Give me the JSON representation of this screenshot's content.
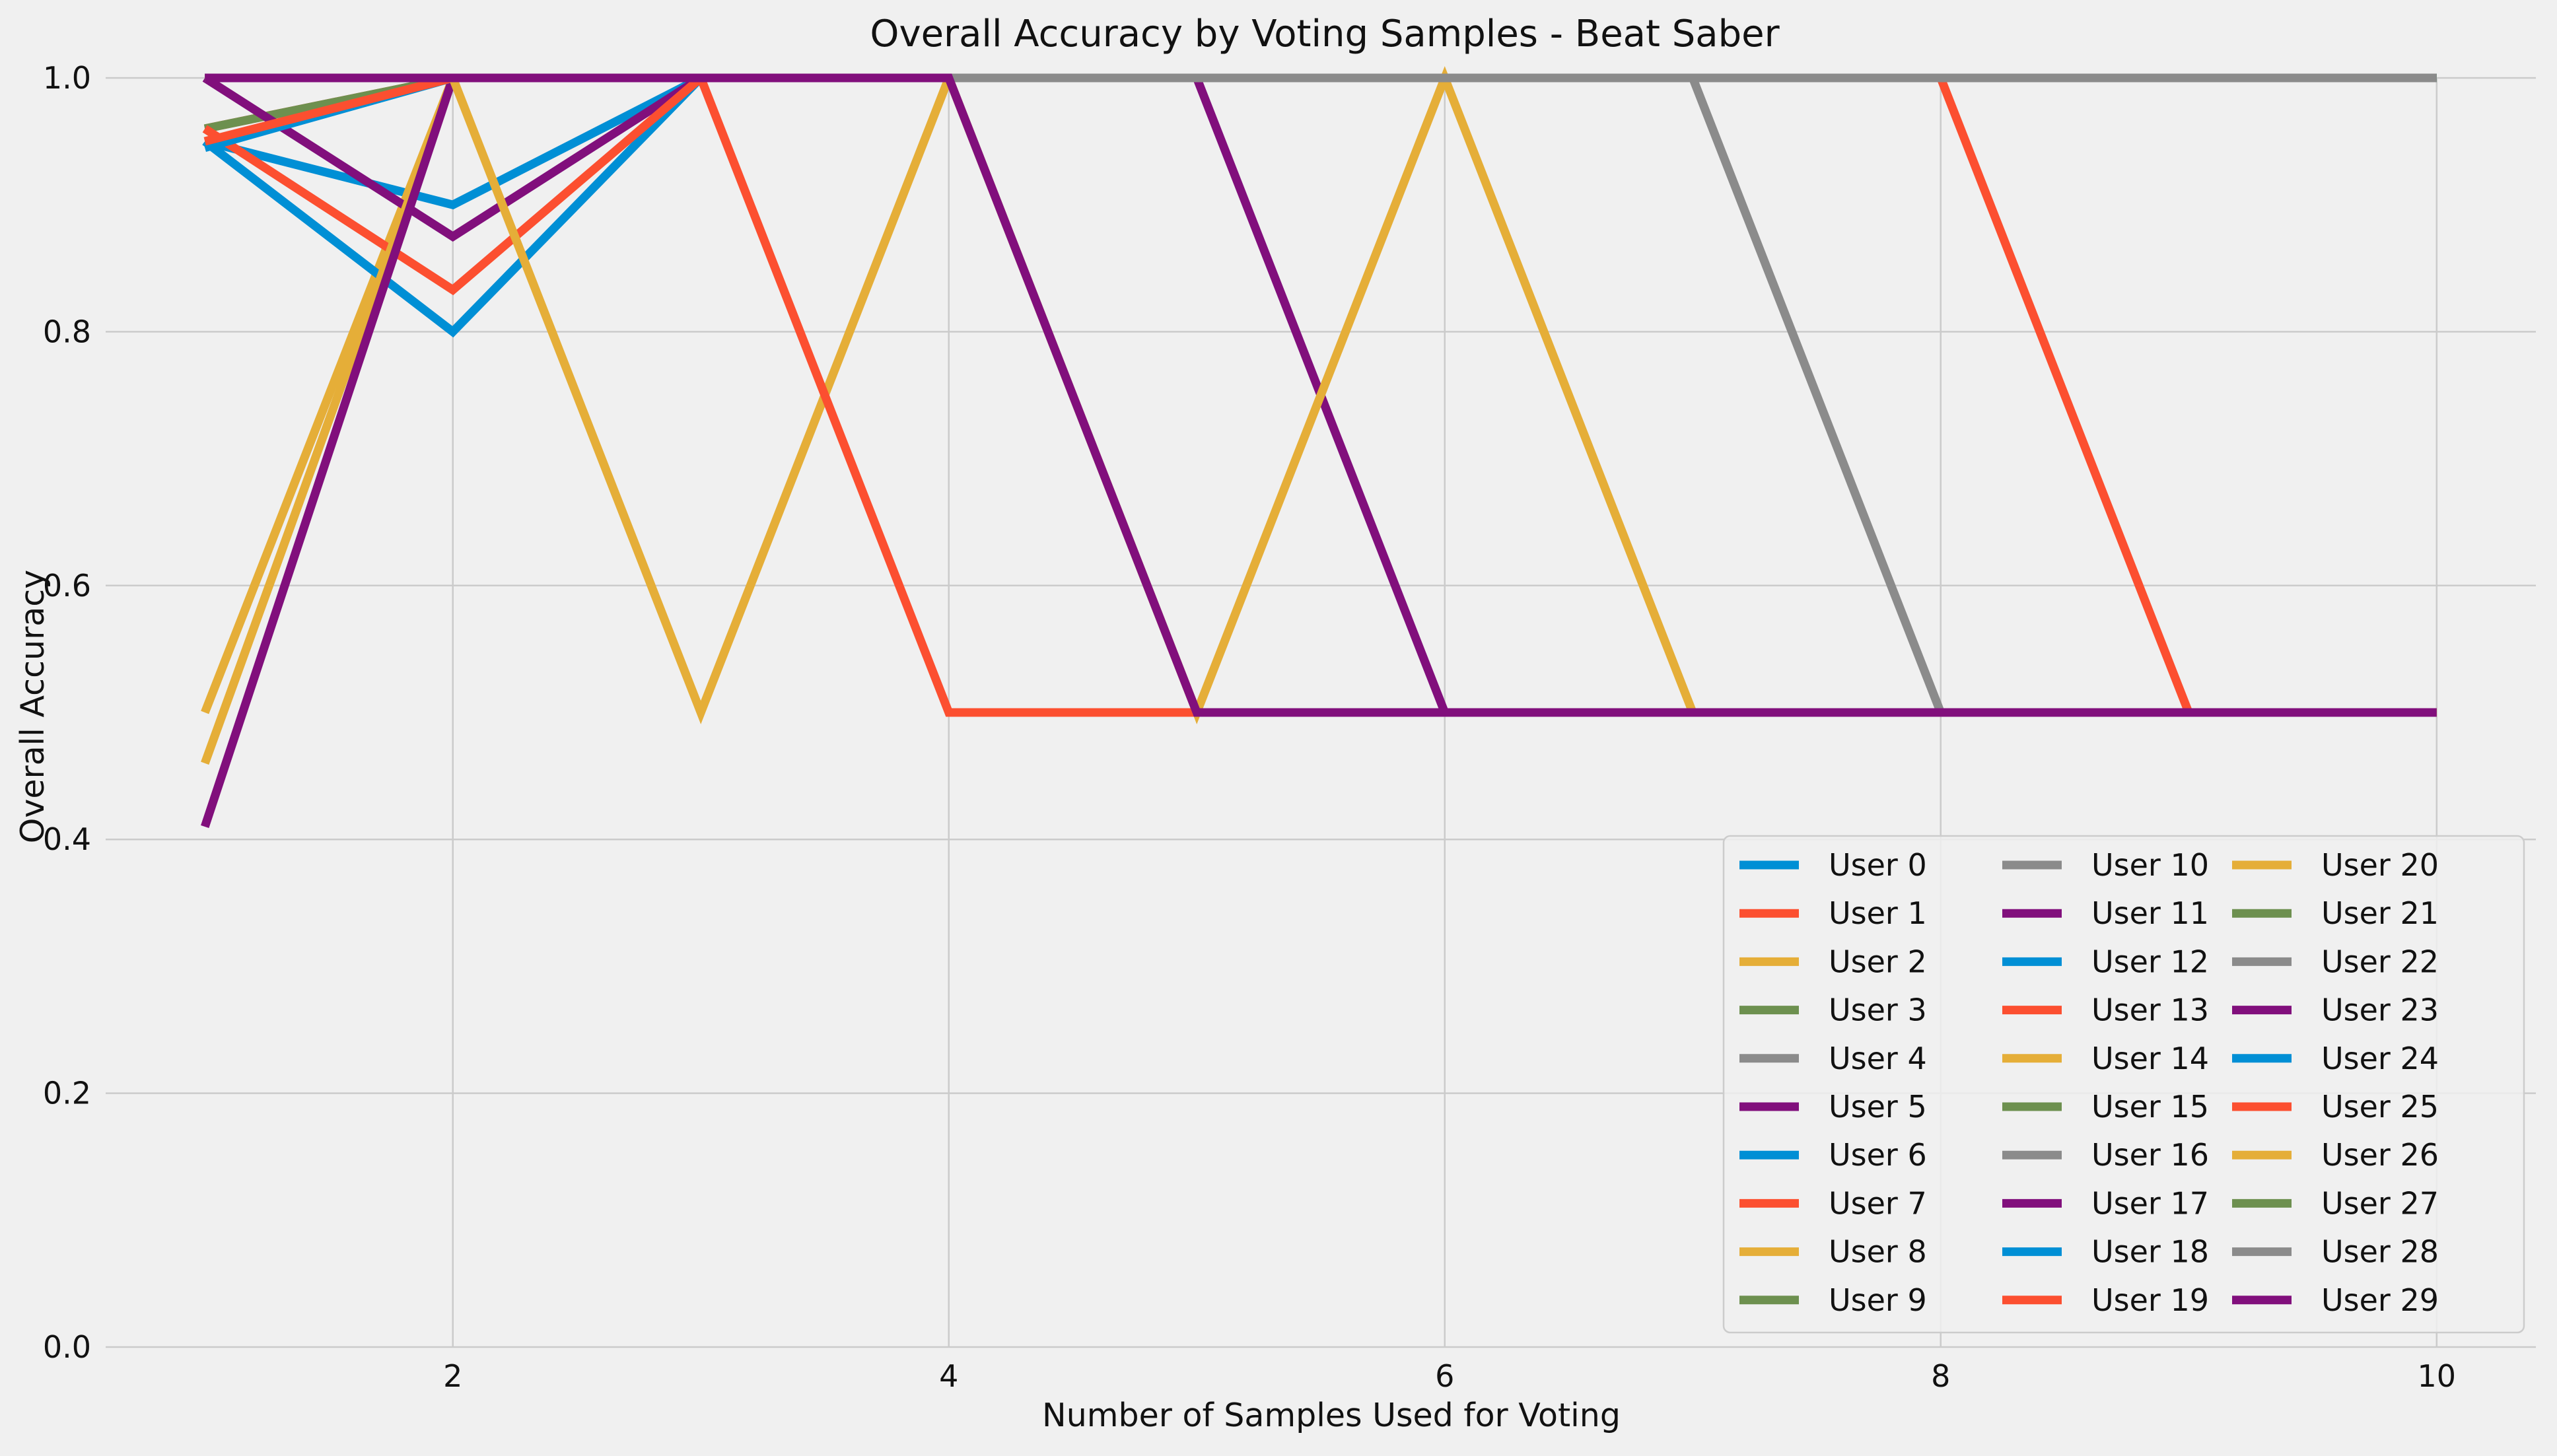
{
  "chart_data": {
    "type": "line",
    "title": "Overall Accuracy by Voting Samples - Beat Saber",
    "xlabel": "Number of Samples Used for Voting",
    "ylabel": "Overall Accuracy",
    "xlim": [
      0.6,
      10.4
    ],
    "ylim": [
      0,
      1
    ],
    "xticks": [
      2,
      4,
      6,
      8,
      10
    ],
    "yticks": [
      0.0,
      0.2,
      0.4,
      0.6,
      0.8,
      1.0
    ],
    "ytick_labels": [
      "0.0",
      "0.2",
      "0.4",
      "0.6",
      "0.8",
      "1.0"
    ],
    "grid": true,
    "legend_position": "lower-right",
    "legend_columns": 3,
    "palette": [
      "#008fd5",
      "#fc4f30",
      "#e5ae38",
      "#6d904f",
      "#8b8b8b",
      "#810f7c"
    ],
    "x": [
      1,
      2,
      3,
      4,
      5,
      6,
      7,
      8,
      9,
      10
    ],
    "series": [
      {
        "name": "User 0",
        "values": [
          0.95,
          0.9,
          1.0,
          1.0,
          1.0,
          1.0,
          1.0,
          1.0,
          1.0,
          1.0
        ]
      },
      {
        "name": "User 1",
        "values": [
          0.96,
          1.0,
          1.0,
          1.0,
          1.0,
          1.0,
          1.0,
          1.0,
          1.0,
          1.0
        ]
      },
      {
        "name": "User 2",
        "values": [
          0.5,
          1.0,
          1.0,
          1.0,
          1.0,
          1.0,
          1.0,
          1.0,
          1.0,
          1.0
        ]
      },
      {
        "name": "User 3",
        "values": [
          0.96,
          1.0,
          1.0,
          1.0,
          1.0,
          1.0,
          1.0,
          1.0,
          1.0,
          1.0
        ]
      },
      {
        "name": "User 4",
        "values": [
          1.0,
          1.0,
          1.0,
          1.0,
          1.0,
          1.0,
          1.0,
          1.0,
          1.0,
          1.0
        ]
      },
      {
        "name": "User 5",
        "values": [
          1.0,
          0.875,
          1.0,
          1.0,
          1.0,
          1.0,
          1.0,
          1.0,
          1.0,
          1.0
        ]
      },
      {
        "name": "User 6",
        "values": [
          0.95,
          0.8,
          1.0,
          1.0,
          1.0,
          1.0,
          1.0,
          1.0,
          1.0,
          1.0
        ]
      },
      {
        "name": "User 7",
        "values": [
          0.96,
          0.833,
          1.0,
          1.0,
          1.0,
          1.0,
          1.0,
          1.0,
          1.0,
          1.0
        ]
      },
      {
        "name": "User 8",
        "values": [
          0.46,
          1.0,
          1.0,
          1.0,
          1.0,
          1.0,
          1.0,
          1.0,
          1.0,
          1.0
        ]
      },
      {
        "name": "User 9",
        "values": [
          1.0,
          1.0,
          1.0,
          1.0,
          1.0,
          1.0,
          1.0,
          1.0,
          1.0,
          1.0
        ]
      },
      {
        "name": "User 10",
        "values": [
          1.0,
          1.0,
          1.0,
          1.0,
          1.0,
          1.0,
          1.0,
          1.0,
          1.0,
          1.0
        ]
      },
      {
        "name": "User 11",
        "values": [
          0.41,
          1.0,
          1.0,
          1.0,
          1.0,
          1.0,
          1.0,
          1.0,
          1.0,
          1.0
        ]
      },
      {
        "name": "User 12",
        "values": [
          0.945,
          1.0,
          1.0,
          1.0,
          1.0,
          1.0,
          1.0,
          1.0,
          1.0,
          1.0
        ]
      },
      {
        "name": "User 13",
        "values": [
          0.95,
          1.0,
          1.0,
          1.0,
          1.0,
          1.0,
          1.0,
          1.0,
          1.0,
          1.0
        ]
      },
      {
        "name": "User 14",
        "values": [
          1.0,
          1.0,
          0.5,
          1.0,
          1.0,
          1.0,
          1.0,
          1.0,
          1.0,
          1.0
        ]
      },
      {
        "name": "User 15",
        "values": [
          1.0,
          1.0,
          1.0,
          1.0,
          1.0,
          1.0,
          1.0,
          1.0,
          1.0,
          1.0
        ]
      },
      {
        "name": "User 16",
        "values": [
          1.0,
          1.0,
          1.0,
          1.0,
          1.0,
          1.0,
          1.0,
          1.0,
          1.0,
          1.0
        ]
      },
      {
        "name": "User 17",
        "values": [
          1.0,
          1.0,
          1.0,
          1.0,
          1.0,
          1.0,
          1.0,
          1.0,
          1.0,
          1.0
        ]
      },
      {
        "name": "User 18",
        "values": [
          1.0,
          1.0,
          1.0,
          1.0,
          1.0,
          1.0,
          1.0,
          1.0,
          1.0,
          1.0
        ]
      },
      {
        "name": "User 19",
        "values": [
          1.0,
          1.0,
          1.0,
          0.5,
          0.5,
          0.5,
          0.5,
          0.5,
          0.5,
          0.5
        ]
      },
      {
        "name": "User 20",
        "values": [
          1.0,
          1.0,
          1.0,
          1.0,
          1.0,
          1.0,
          1.0,
          1.0,
          1.0,
          1.0
        ]
      },
      {
        "name": "User 21",
        "values": [
          1.0,
          1.0,
          1.0,
          1.0,
          1.0,
          1.0,
          1.0,
          1.0,
          1.0,
          1.0
        ]
      },
      {
        "name": "User 22",
        "values": [
          1.0,
          1.0,
          1.0,
          1.0,
          1.0,
          1.0,
          1.0,
          0.5,
          0.5,
          0.5
        ]
      },
      {
        "name": "User 23",
        "values": [
          1.0,
          1.0,
          1.0,
          1.0,
          1.0,
          0.5,
          0.5,
          0.5,
          0.5,
          0.5
        ]
      },
      {
        "name": "User 24",
        "values": [
          1.0,
          1.0,
          1.0,
          1.0,
          1.0,
          1.0,
          1.0,
          1.0,
          1.0,
          1.0
        ]
      },
      {
        "name": "User 25",
        "values": [
          1.0,
          1.0,
          1.0,
          1.0,
          1.0,
          1.0,
          1.0,
          1.0,
          0.5,
          0.5
        ]
      },
      {
        "name": "User 26",
        "values": [
          1.0,
          1.0,
          1.0,
          1.0,
          0.5,
          1.0,
          0.5,
          0.5,
          0.5,
          0.5
        ]
      },
      {
        "name": "User 27",
        "values": [
          1.0,
          1.0,
          1.0,
          1.0,
          1.0,
          1.0,
          1.0,
          1.0,
          1.0,
          1.0
        ]
      },
      {
        "name": "User 28",
        "values": [
          1.0,
          1.0,
          1.0,
          1.0,
          1.0,
          1.0,
          1.0,
          1.0,
          1.0,
          1.0
        ]
      },
      {
        "name": "User 29",
        "values": [
          1.0,
          1.0,
          1.0,
          1.0,
          0.5,
          0.5,
          0.5,
          0.5,
          0.5,
          0.5
        ]
      }
    ]
  }
}
